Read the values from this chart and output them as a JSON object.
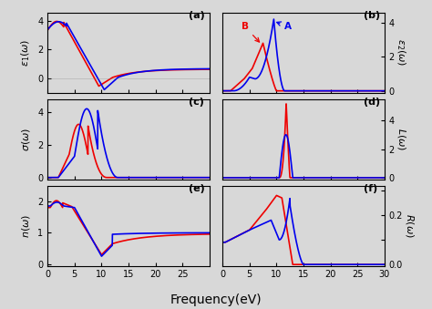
{
  "title": "Frequency(eV)",
  "blue_color": "#0000ee",
  "red_color": "#ee0000",
  "line_width": 1.2,
  "bg_color": "#d8d8d8",
  "subplots": {
    "a_ylabel": "$\\varepsilon_1(\\omega)$",
    "b_ylabel": "$\\varepsilon_2(\\omega)$",
    "c_ylabel": "$\\sigma(\\omega)$",
    "d_ylabel": "$L(\\omega)$",
    "e_ylabel": "$n(\\omega)$",
    "f_ylabel": "$R(\\omega)$"
  },
  "labels": [
    "(a)",
    "(b)",
    "(c)",
    "(d)",
    "(e)",
    "(f)"
  ]
}
